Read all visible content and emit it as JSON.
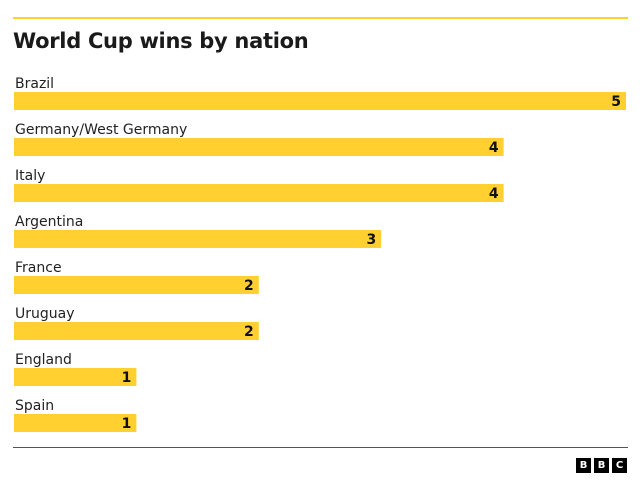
{
  "colors": {
    "bar": "#FFD02F",
    "top_rule": "#FFD02F"
  },
  "chart_data": {
    "type": "bar",
    "orientation": "horizontal",
    "title": "World Cup wins by nation",
    "categories": [
      "Brazil",
      "Germany/West Germany",
      "Italy",
      "Argentina",
      "France",
      "Uruguay",
      "England",
      "Spain"
    ],
    "values": [
      5,
      4,
      4,
      3,
      2,
      2,
      1,
      1
    ],
    "xlim": [
      0,
      5
    ],
    "grid": false,
    "legend": "none",
    "data_labels": "inside-end"
  },
  "logo": {
    "letters": [
      "B",
      "B",
      "C"
    ]
  }
}
